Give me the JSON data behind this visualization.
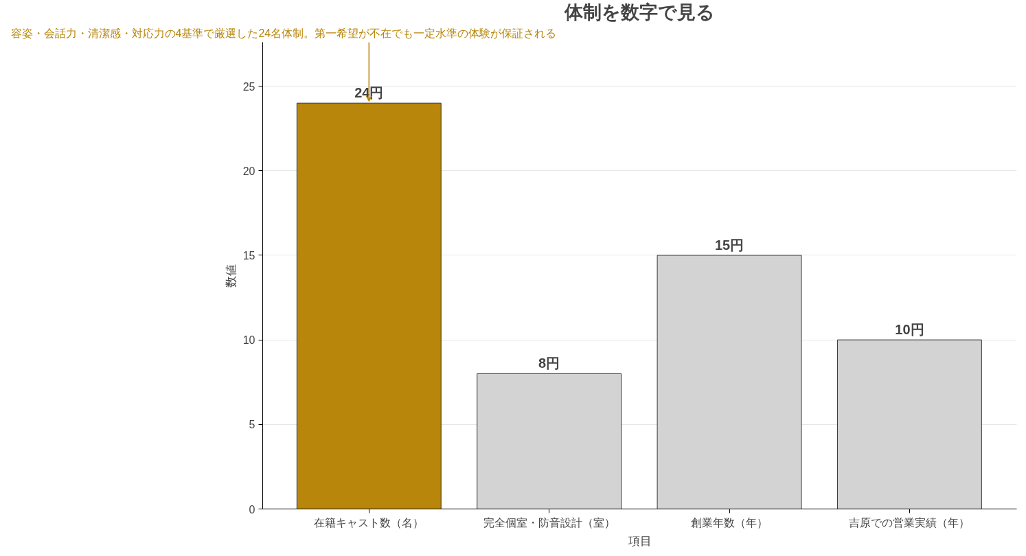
{
  "chart_data": {
    "type": "bar",
    "title": "体制を数字で見る",
    "xlabel": "項目",
    "ylabel": "数値",
    "categories": [
      "在籍キャスト数（名）",
      "完全個室・防音設計（室）",
      "創業年数（年）",
      "吉原での営業実績（年）"
    ],
    "values": [
      24,
      8,
      15,
      10
    ],
    "colors": [
      "#b8860b",
      "#d3d3d3",
      "#d3d3d3",
      "#d3d3d3"
    ],
    "value_labels": [
      "24円",
      "8円",
      "15円",
      "10円"
    ],
    "ylim": [
      0,
      27.6
    ],
    "yticks": [
      0,
      5,
      10,
      15,
      20,
      25
    ],
    "grid": "y",
    "annotations": [
      {
        "text": "容姿・会話力・清潔感・対応力の4基準で厳選した24名体制。第一希望が不在でも一定水準の体験が保証される",
        "x": "在籍キャスト数（名）",
        "y": 24
      }
    ]
  }
}
